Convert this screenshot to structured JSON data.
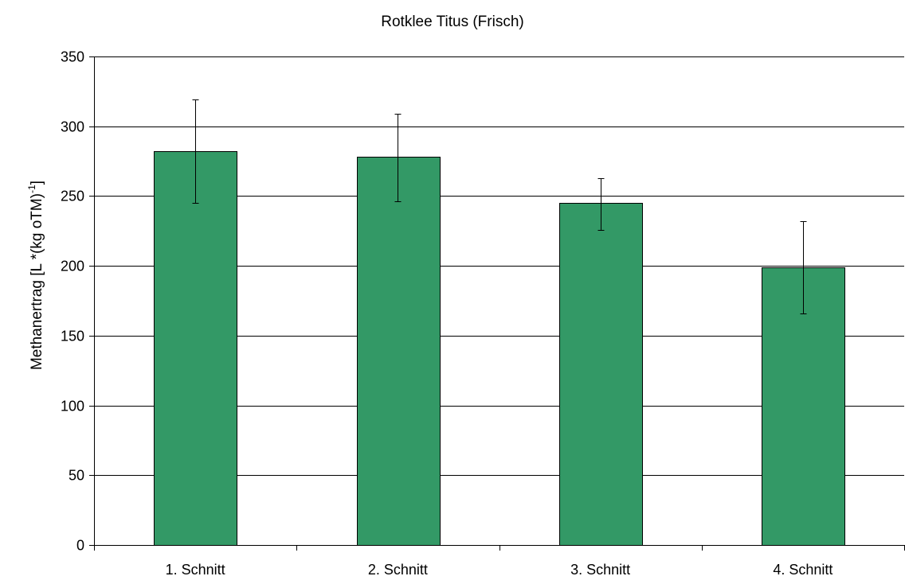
{
  "chart_data": {
    "type": "bar",
    "title": "Rotklee Titus (Frisch)",
    "xlabel": "",
    "ylabel": {
      "main": "Methanertrag [L *(kg oTM)",
      "superscript": "-1",
      "suffix": "]"
    },
    "ylim": [
      0,
      350
    ],
    "yticks": [
      0,
      50,
      100,
      150,
      200,
      250,
      300,
      350
    ],
    "categories": [
      "1. Schnitt",
      "2. Schnitt",
      "3. Schnitt",
      "4. Schnitt"
    ],
    "series": [
      {
        "values": [
          282,
          278,
          245,
          199
        ],
        "error_low": [
          245,
          246,
          226,
          166
        ],
        "error_high": [
          319,
          309,
          263,
          232
        ],
        "color": "#339966"
      }
    ],
    "grid": {
      "horizontal": true,
      "vertical": false
    },
    "legend": "none"
  }
}
